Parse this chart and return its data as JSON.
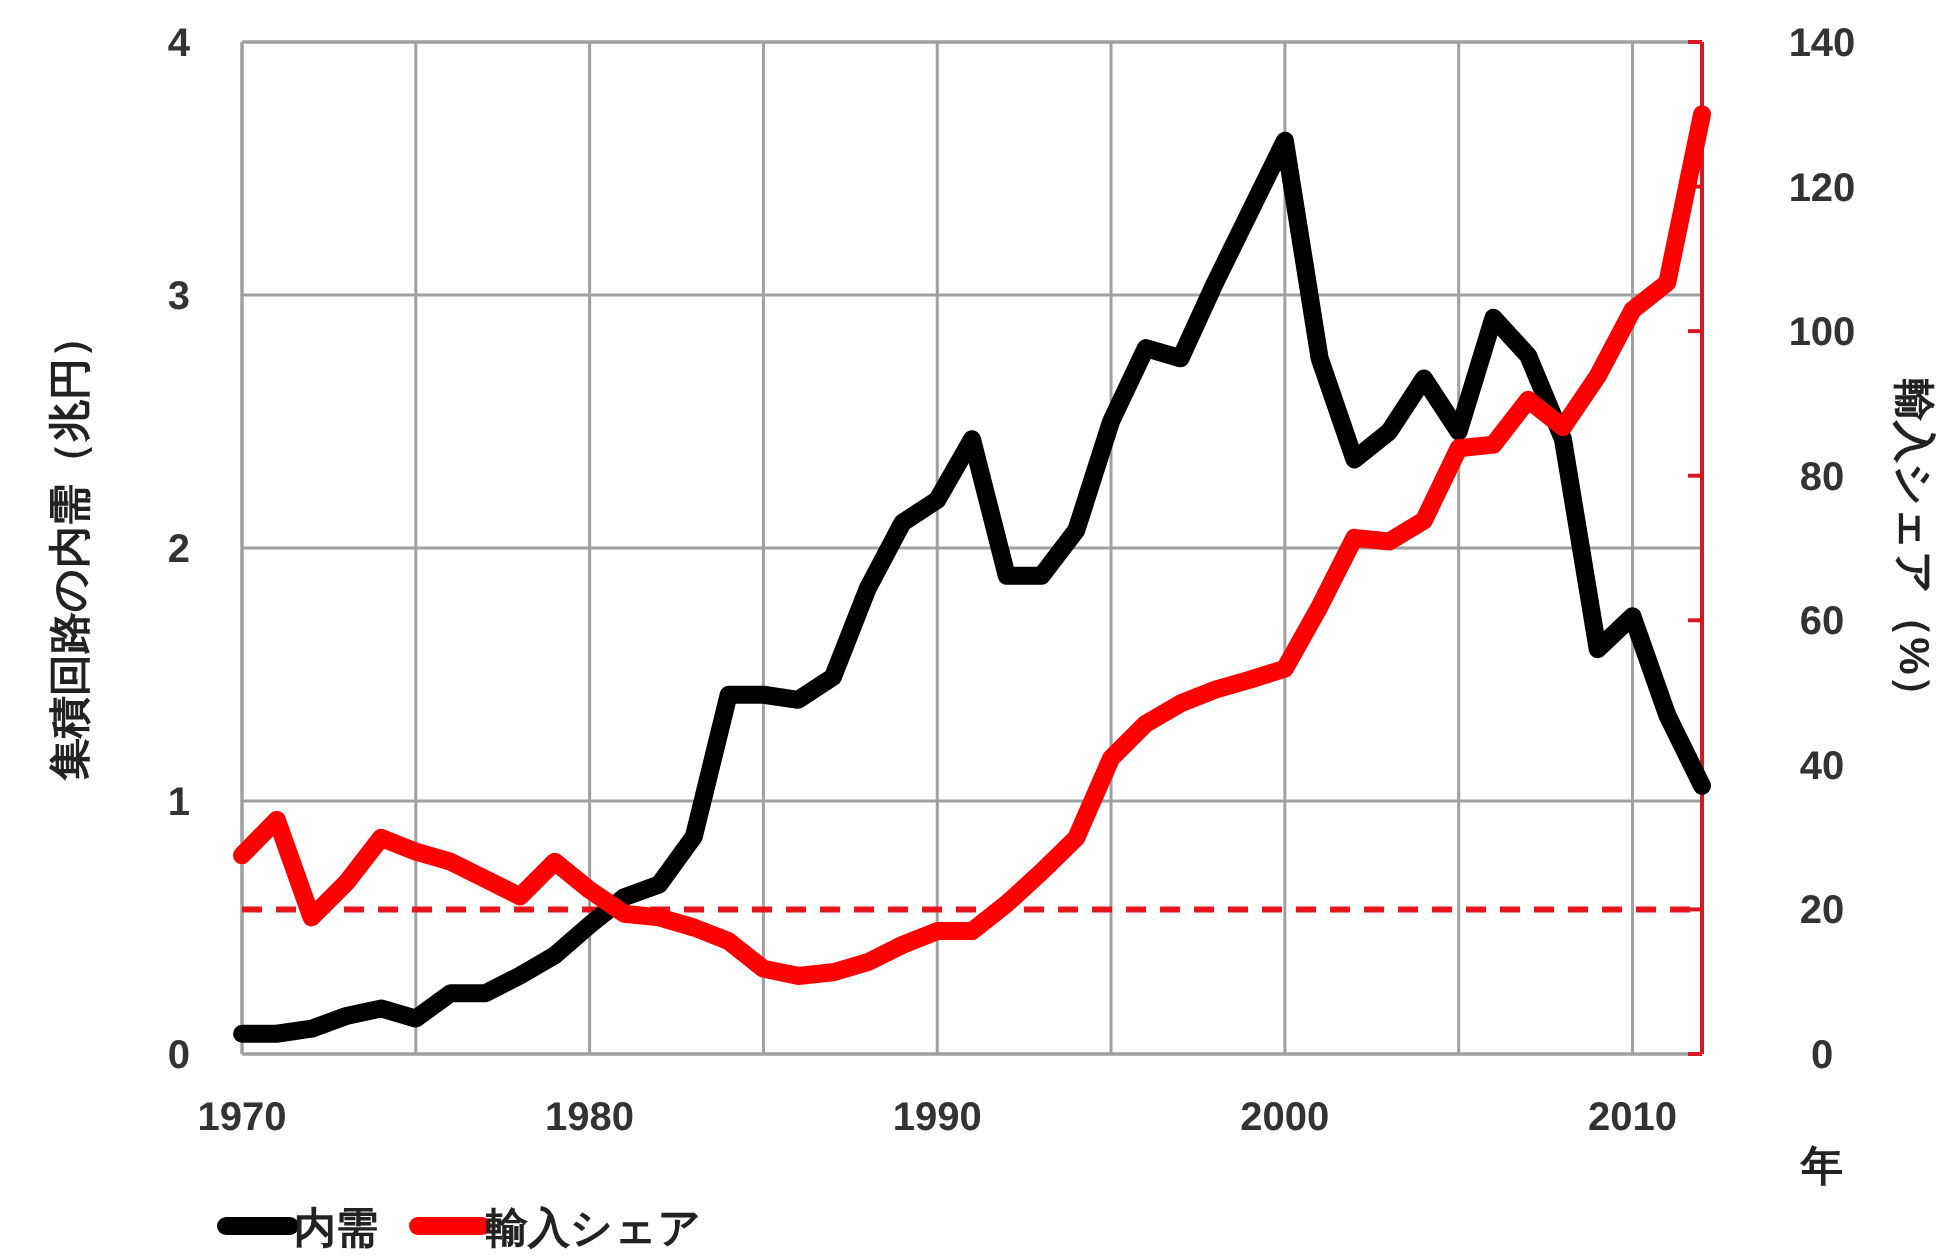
{
  "chart_data": {
    "type": "line",
    "ylabel": "集積回路の内需（兆円）",
    "y2label": "輸入シェア（%）",
    "xlabel": "年",
    "x": [
      1970,
      1971,
      1972,
      1973,
      1974,
      1975,
      1976,
      1977,
      1978,
      1979,
      1980,
      1981,
      1982,
      1983,
      1984,
      1985,
      1986,
      1987,
      1988,
      1989,
      1990,
      1991,
      1992,
      1993,
      1994,
      1995,
      1996,
      1997,
      1998,
      1999,
      2000,
      2001,
      2002,
      2003,
      2004,
      2005,
      2006,
      2007,
      2008,
      2009,
      2010,
      2011,
      2012
    ],
    "series": [
      {
        "name": "内需",
        "color": "#000000",
        "values": [
          0.08,
          0.08,
          0.1,
          0.15,
          0.18,
          0.14,
          0.24,
          0.24,
          0.31,
          0.39,
          0.51,
          0.62,
          0.67,
          0.86,
          1.42,
          1.42,
          1.4,
          1.49,
          1.84,
          2.1,
          2.19,
          2.43,
          1.89,
          1.89,
          2.07,
          2.5,
          2.79,
          2.75,
          3.05,
          3.33,
          3.61,
          2.75,
          2.35,
          2.46,
          2.67,
          2.46,
          2.91,
          2.76,
          2.43,
          1.6,
          1.73,
          1.34,
          1.06
        ]
      },
      {
        "name": "輸入シェア",
        "color": "#ff0000",
        "axis": "y2",
        "values": [
          27.5,
          32.4,
          18.9,
          23.7,
          29.9,
          28,
          26.6,
          24.2,
          21.8,
          26.6,
          22.7,
          19.4,
          18.9,
          17.5,
          15.6,
          11.8,
          10.8,
          11.3,
          12.7,
          15.1,
          17,
          17,
          20.8,
          25.2,
          29.9,
          40.9,
          45.7,
          48.5,
          50.4,
          51.8,
          53.3,
          61.9,
          71.4,
          70.9,
          73.8,
          83.8,
          84.3,
          90.5,
          86.7,
          93.8,
          102.9,
          106.7,
          130
        ]
      }
    ],
    "xlim": [
      1970,
      2012
    ],
    "xticks": [
      1970,
      {
        "value": 1975,
        "label": null
      },
      1980,
      {
        "value": 1985,
        "label": null
      },
      1990,
      {
        "value": 1995,
        "label": null
      },
      2000,
      {
        "value": 2005,
        "label": null
      },
      2010
    ],
    "ylim": [
      0,
      4
    ],
    "yticks": [
      0,
      1,
      2,
      3,
      4
    ],
    "y2lim": [
      0,
      140
    ],
    "y2ticks": [
      0,
      20,
      40,
      60,
      80,
      100,
      120,
      140
    ],
    "ref_lines": [
      {
        "axis": "y2",
        "value": 20,
        "color": "#e8141b",
        "line_style": "dashed"
      }
    ],
    "grid": true,
    "legend": "bottom left"
  }
}
